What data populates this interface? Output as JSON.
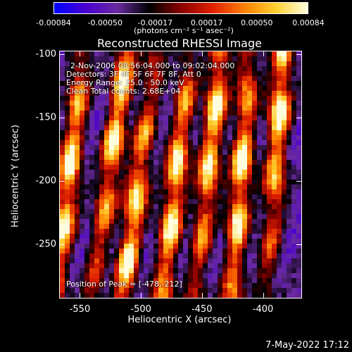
{
  "colorbar": {
    "ticks": [
      "-0.00084",
      "-0.00050",
      "-0.00017",
      "0.00017",
      "0.00050",
      "0.00084"
    ],
    "tick_values": [
      -0.00084,
      -0.0005,
      -0.00017,
      0.00017,
      0.0005,
      0.00084
    ],
    "range": [
      -0.00084,
      0.00084
    ],
    "unit_label": "(photons cm⁻² s⁻¹ asec⁻²)",
    "colors": [
      "#0000ff",
      "#4a00d0",
      "#6a2aa0",
      "#000000",
      "#8a0000",
      "#e02000",
      "#ff8000",
      "#ffd030",
      "#ffffe0"
    ]
  },
  "chart_data": {
    "type": "heatmap",
    "title": "Reconstructed RHESSI Image",
    "xlabel": "Heliocentric X (arcsec)",
    "ylabel": "Heliocentric Y (arcsec)",
    "xlim": [
      -567,
      -368
    ],
    "ylim": [
      -293,
      -97
    ],
    "xticks": [
      "-550",
      "-500",
      "-450",
      "-400"
    ],
    "xtick_values": [
      -550,
      -500,
      -450,
      -400
    ],
    "yticks": [
      "-100",
      "-150",
      "-200",
      "-250"
    ],
    "ytick_values": [
      -100,
      -150,
      -200,
      -250
    ],
    "annotations": {
      "time_range": "2-Nov-2006 08:56:04.000 to 09:02:04.000",
      "detectors": "Detectors: 3F 4F 5F 6F 7F 8F, Att 0",
      "energy": "Energy Range: 25.0 - 50.0 keV",
      "method": "Clean    Total counts: 2.68E+04",
      "peak": "Position of Peak = [-478,-212]"
    },
    "peak_position": [
      -478,
      -212
    ],
    "stripes": [
      {
        "x_at_top": -548,
        "x_at_bottom": -570,
        "peak_y": -200
      },
      {
        "x_at_top": -512,
        "x_at_bottom": -540,
        "peak_y": -150
      },
      {
        "x_at_top": -488,
        "x_at_bottom": -515,
        "peak_y": -240
      },
      {
        "x_at_top": -460,
        "x_at_bottom": -482,
        "peak_y": -212
      },
      {
        "x_at_top": -434,
        "x_at_bottom": -455,
        "peak_y": -160
      },
      {
        "x_at_top": -410,
        "x_at_bottom": -425,
        "peak_y": -205
      },
      {
        "x_at_top": -383,
        "x_at_bottom": -396,
        "peak_y": -140
      }
    ]
  },
  "date_stamp": "7-May-2022 17:12"
}
